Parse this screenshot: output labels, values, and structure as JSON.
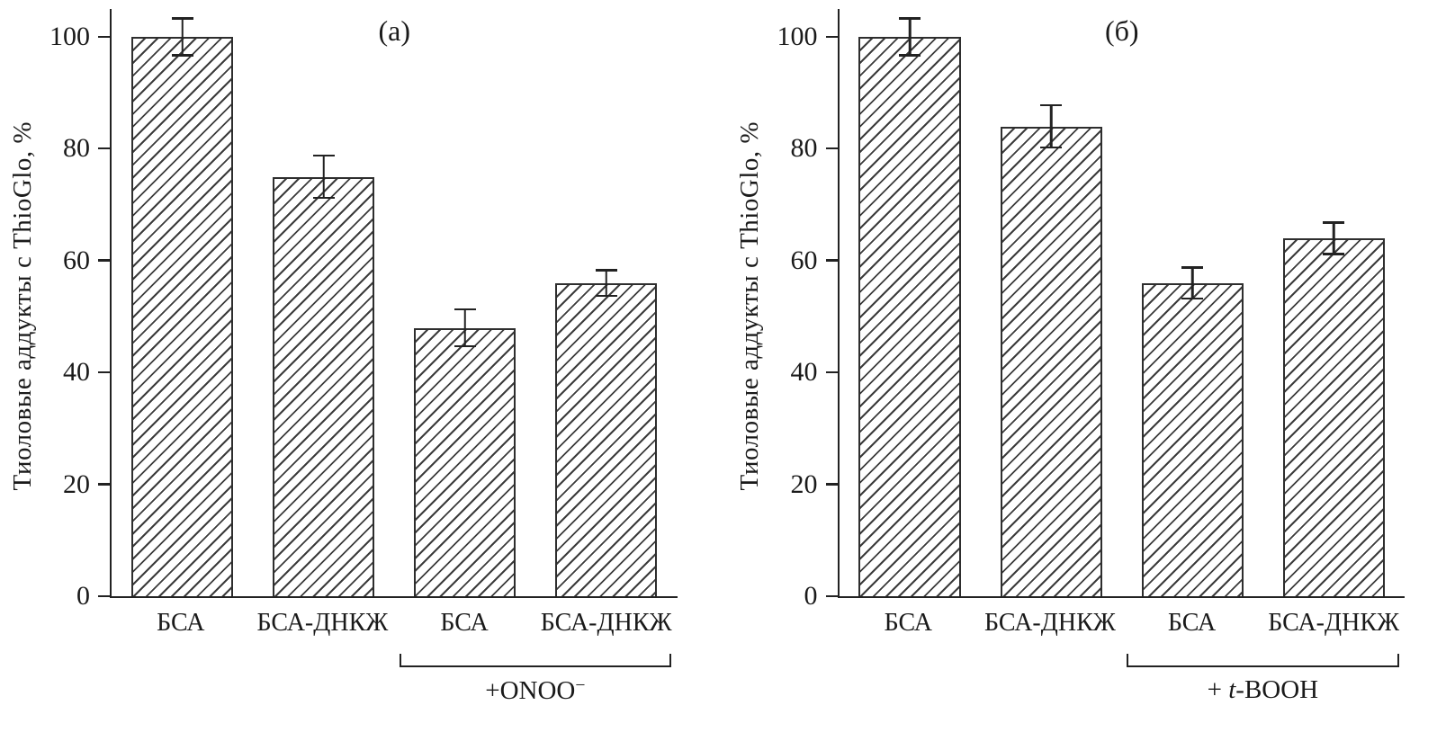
{
  "chart_data": [
    {
      "type": "bar",
      "panel_label": "(а)",
      "ylabel": "Тиоловые аддукты с ThioGlo, %",
      "categories": [
        "БСА",
        "БСА-ДНКЖ",
        "БСА",
        "БСА-ДНКЖ"
      ],
      "values": [
        100,
        75,
        48,
        56
      ],
      "errors": [
        3.5,
        4,
        3.5,
        2.5
      ],
      "ylim": [
        0,
        105
      ],
      "yticks": [
        0,
        20,
        40,
        60,
        80,
        100
      ],
      "grid": false,
      "legend": false,
      "bar_style": "diagonal-hatch",
      "bar_fill": "#ffffff",
      "hatch_color": "#3c3c3c",
      "axis_color": "#222222",
      "group_annotation": {
        "start_index": 2,
        "end_index": 3,
        "segments": [
          {
            "text": "+ONOO"
          },
          {
            "text": "−",
            "style": "superscript"
          }
        ]
      }
    },
    {
      "type": "bar",
      "panel_label": "(б)",
      "ylabel": "Тиоловые аддукты с ThioGlo, %",
      "categories": [
        "БСА",
        "БСА-ДНКЖ",
        "БСА",
        "БСА-ДНКЖ"
      ],
      "values": [
        100,
        84,
        56,
        64
      ],
      "errors": [
        3.5,
        4,
        3,
        3
      ],
      "ylim": [
        0,
        105
      ],
      "yticks": [
        0,
        20,
        40,
        60,
        80,
        100
      ],
      "grid": false,
      "legend": false,
      "bar_style": "diagonal-hatch",
      "bar_fill": "#ffffff",
      "hatch_color": "#3c3c3c",
      "axis_color": "#222222",
      "group_annotation": {
        "start_index": 2,
        "end_index": 3,
        "segments": [
          {
            "text": "+ "
          },
          {
            "text": "t",
            "style": "italic"
          },
          {
            "text": "-BOOH"
          }
        ]
      }
    }
  ]
}
